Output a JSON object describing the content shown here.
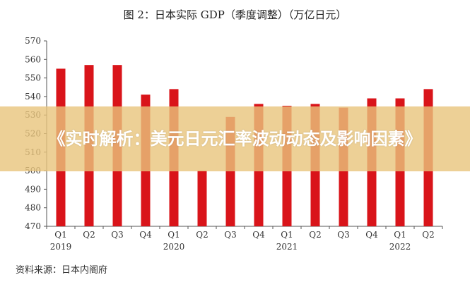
{
  "chart_data": {
    "type": "bar",
    "title": "图 2：日本实际 GDP（季度调整）（万亿日元）",
    "source": "资料来源：日本内阁府",
    "categories": [
      "Q1",
      "Q2",
      "Q3",
      "Q4",
      "Q1",
      "Q2",
      "Q3",
      "Q4",
      "Q1",
      "Q2",
      "Q3",
      "Q4",
      "Q1",
      "Q2"
    ],
    "years": [
      {
        "label": "2019",
        "under_index": 0
      },
      {
        "label": "2020",
        "under_index": 4
      },
      {
        "label": "2021",
        "under_index": 8
      },
      {
        "label": "2022",
        "under_index": 12
      }
    ],
    "values": [
      555,
      557,
      557,
      541,
      544,
      500,
      529,
      536,
      535,
      536,
      534,
      539,
      539,
      544
    ],
    "ylim": [
      470,
      570
    ],
    "yticks": [
      470,
      480,
      490,
      500,
      510,
      520,
      530,
      540,
      550,
      560,
      570
    ],
    "grid": false,
    "colors": {
      "bar": "#d9141a",
      "axis": "#555555",
      "text": "#333333"
    }
  },
  "banner": {
    "text": "《实时解析：美元日元汇率波动动态及影响因素》",
    "color": "#e8c47c"
  }
}
